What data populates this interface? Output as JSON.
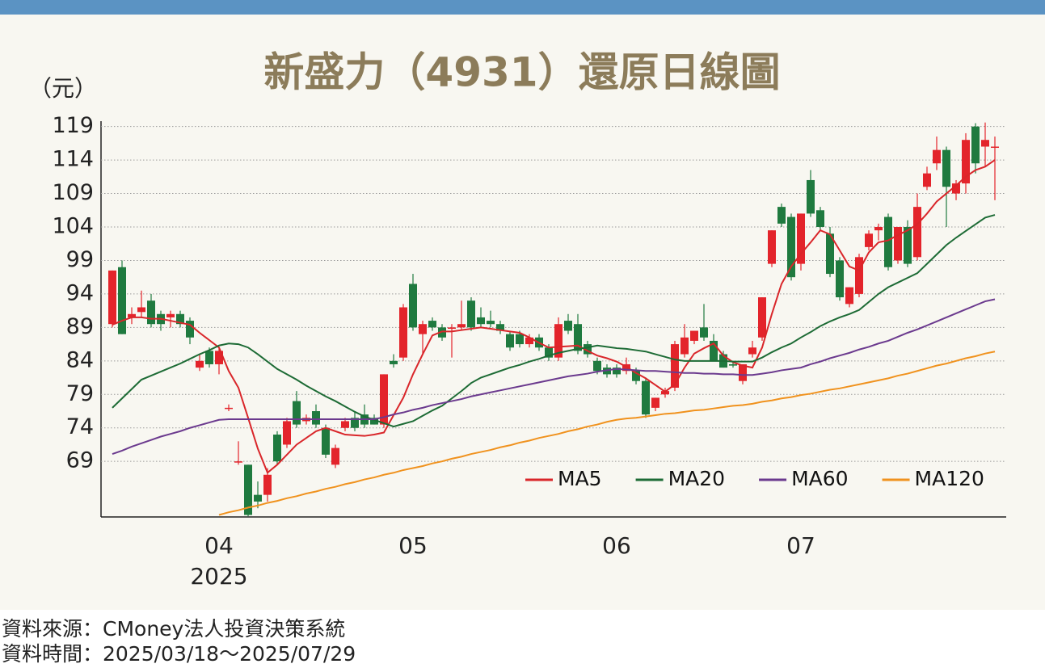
{
  "chart_data": {
    "type": "candlestick",
    "title": "新盛力（4931）還原日線圖",
    "y_unit": "（元）",
    "x_year_label": "2025",
    "categories": [
      null,
      null,
      null,
      null,
      null,
      null,
      null,
      null,
      null,
      null,
      null,
      "04",
      null,
      null,
      null,
      null,
      null,
      null,
      null,
      null,
      null,
      null,
      null,
      null,
      null,
      null,
      null,
      null,
      null,
      null,
      null,
      "05",
      null,
      null,
      null,
      null,
      null,
      null,
      null,
      null,
      null,
      null,
      null,
      null,
      null,
      null,
      null,
      null,
      null,
      null,
      null,
      null,
      "06",
      null,
      null,
      null,
      null,
      null,
      null,
      null,
      null,
      null,
      null,
      null,
      null,
      null,
      null,
      null,
      null,
      null,
      null,
      "07",
      null,
      null,
      null,
      null,
      null,
      null,
      null,
      null,
      null,
      null,
      null,
      null,
      null,
      null,
      null,
      null,
      null,
      null,
      null,
      null
    ],
    "open": [
      89.5,
      98,
      90.5,
      91.3,
      93,
      91,
      90.5,
      91,
      90,
      83,
      85.5,
      83.5,
      77,
      69,
      68.5,
      64,
      64,
      73,
      71.5,
      78,
      75,
      76.5,
      74,
      68.5,
      74,
      75.5,
      76,
      75.5,
      74.5,
      84,
      84.5,
      95.5,
      88,
      90,
      89,
      88.8,
      89,
      93,
      90.5,
      90,
      89.5,
      88,
      88,
      86.5,
      87.5,
      86,
      84.5,
      90,
      89.5,
      86.5,
      84,
      83,
      83,
      82.5,
      82.5,
      81,
      77,
      79,
      80,
      85,
      87,
      89,
      87,
      85,
      83.5,
      81,
      85,
      87.5,
      98.5,
      107,
      105.5,
      98.5,
      111,
      106.5,
      103,
      99,
      92.5,
      94,
      101,
      103.5,
      105.5,
      99,
      104,
      99.5,
      110,
      113.5,
      115.5,
      109,
      110.5,
      119,
      116,
      116
    ],
    "high": [
      97.5,
      99,
      92,
      94.5,
      94,
      91.5,
      91.5,
      91.5,
      90.5,
      85,
      86,
      86,
      77.5,
      72,
      68.5,
      66,
      68,
      73.5,
      75.5,
      79.5,
      76,
      77.5,
      74.5,
      71.5,
      75.5,
      76.5,
      77.5,
      76,
      82,
      85,
      92.5,
      97,
      90,
      90.5,
      89.5,
      89.5,
      93,
      93.5,
      92,
      91.5,
      90,
      88.5,
      88.5,
      88,
      88,
      86.5,
      90.5,
      91,
      91,
      87,
      84.5,
      83.5,
      83.5,
      84.5,
      83,
      81.5,
      78.5,
      80,
      87,
      89.5,
      88.5,
      92.5,
      88,
      85.5,
      84,
      83.5,
      87,
      93.5,
      103.5,
      107.5,
      106,
      106,
      112.5,
      107,
      104,
      99.5,
      95,
      100,
      103.5,
      104.5,
      106,
      104,
      105,
      109,
      113,
      117.5,
      116,
      111,
      118,
      119.5,
      119.6,
      117.5
    ],
    "low": [
      89,
      88,
      89.5,
      90.5,
      89,
      88.5,
      89,
      89,
      86.5,
      82.5,
      83,
      82,
      76.5,
      68.5,
      60.8,
      62,
      63,
      68.5,
      71,
      74,
      74.5,
      74,
      69.5,
      68,
      73.5,
      73.5,
      74,
      74.5,
      74,
      83,
      84,
      88.5,
      85,
      88.5,
      87,
      84.5,
      88.5,
      88.5,
      89,
      89,
      88,
      85.5,
      86,
      86,
      85.5,
      84,
      84,
      88,
      85,
      84.5,
      82,
      81.5,
      81.5,
      82,
      80.5,
      75.5,
      76.5,
      78.5,
      79.5,
      84.5,
      86.5,
      87,
      84,
      83,
      83,
      80.5,
      84.5,
      87,
      98,
      104,
      96,
      97.5,
      105.5,
      103.5,
      96.5,
      93,
      92,
      93.5,
      100.5,
      102,
      97.5,
      98.5,
      98,
      99,
      109.5,
      112.5,
      104,
      108,
      109,
      112,
      113,
      108
    ],
    "close": [
      97.5,
      88,
      91,
      92,
      89.5,
      89.5,
      91,
      89.5,
      87.5,
      84,
      83.5,
      85.5,
      77,
      69,
      61,
      63,
      67,
      69,
      75,
      74.5,
      75.5,
      74.5,
      70,
      71,
      75,
      74,
      74.5,
      74.5,
      82,
      83.5,
      92,
      89,
      89.5,
      89,
      87.5,
      89,
      89.5,
      89,
      89.5,
      89.5,
      88.5,
      86,
      86.5,
      87.5,
      86,
      84.5,
      89.5,
      88.5,
      85.5,
      85,
      82.5,
      82,
      82,
      83.5,
      81,
      76,
      78.5,
      79.5,
      86.5,
      87.5,
      88.5,
      87.5,
      84,
      83,
      83.3,
      83.5,
      86,
      93.5,
      103.5,
      104.5,
      96.5,
      106,
      106,
      104,
      97,
      93.5,
      95,
      99.5,
      103,
      104,
      98,
      104,
      98.5,
      107,
      112,
      115.5,
      110,
      110.5,
      117,
      113.5,
      117,
      116
    ],
    "up_color": "#e3242b",
    "down_color": "#1f7a3f",
    "series": [
      {
        "name": "MA5",
        "color": "#d9262a",
        "values": [
          89.4,
          90.0,
          90.5,
          90.5,
          90.3,
          90.3,
          90.0,
          89.7,
          89.4,
          88.2,
          87.1,
          86.0,
          82.5,
          80.0,
          75.5,
          70.9,
          67.3,
          68.5,
          70.0,
          71.5,
          72.5,
          73.5,
          74.0,
          73.5,
          73.0,
          72.9,
          72.8,
          73.0,
          73.3,
          75.9,
          78.5,
          82.0,
          85.0,
          87.8,
          88.4,
          88.4,
          88.6,
          88.8,
          89.0,
          88.8,
          88.6,
          88.4,
          88.2,
          87.5,
          86.7,
          86.0,
          86.1,
          86.2,
          86.3,
          85.5,
          84.8,
          84.4,
          83.9,
          83.1,
          82.2,
          81.4,
          80.4,
          79.4,
          80.5,
          83.0,
          85.1,
          85.9,
          86.6,
          84.8,
          83.8,
          83.3,
          83.0,
          86.0,
          91.0,
          95.5,
          98.1,
          100.0,
          101.7,
          103.5,
          102.9,
          100.5,
          98.1,
          97.5,
          100.2,
          101.7,
          102.0,
          102.8,
          103.5,
          104.4,
          106.0,
          107.8,
          109.0,
          110.2,
          111.5,
          112.5,
          113.0,
          114.0
        ]
      },
      {
        "name": "MA20",
        "color": "#1d6b35",
        "values": [
          77.0,
          78.4,
          79.8,
          81.2,
          81.8,
          82.4,
          83.0,
          83.6,
          84.3,
          85.0,
          85.6,
          86.3,
          86.6,
          86.5,
          86.0,
          85.0,
          83.9,
          82.8,
          82.0,
          81.2,
          80.3,
          79.5,
          78.7,
          78.0,
          77.2,
          76.4,
          75.7,
          75.2,
          74.7,
          74.2,
          74.6,
          75.0,
          75.8,
          76.6,
          77.3,
          78.4,
          79.5,
          80.7,
          81.5,
          82.0,
          82.5,
          83.0,
          83.4,
          83.9,
          84.3,
          84.8,
          85.2,
          85.5,
          85.8,
          86.0,
          86.3,
          86.1,
          85.9,
          85.8,
          85.6,
          85.4,
          85.0,
          84.6,
          84.2,
          84.0,
          84.0,
          84.0,
          84.0,
          84.0,
          83.9,
          83.9,
          83.9,
          84.5,
          85.3,
          86.0,
          86.6,
          87.5,
          88.3,
          89.2,
          89.9,
          90.5,
          91.0,
          91.6,
          92.8,
          94.0,
          95.0,
          95.7,
          96.4,
          97.1,
          98.5,
          99.9,
          101.3,
          102.4,
          103.4,
          104.4,
          105.4,
          105.8
        ]
      },
      {
        "name": "MA60",
        "color": "#6b3a8e",
        "values": [
          70.1,
          70.6,
          71.2,
          71.7,
          72.2,
          72.7,
          73.1,
          73.5,
          74.0,
          74.4,
          74.8,
          75.2,
          75.3,
          75.3,
          75.3,
          75.3,
          75.3,
          75.3,
          75.3,
          75.3,
          75.3,
          75.3,
          75.3,
          75.3,
          75.3,
          75.3,
          75.3,
          75.3,
          75.6,
          76.0,
          76.3,
          76.7,
          77.0,
          77.4,
          77.7,
          78.0,
          78.3,
          78.7,
          79.0,
          79.3,
          79.6,
          79.9,
          80.2,
          80.5,
          80.8,
          81.1,
          81.4,
          81.7,
          81.9,
          82.1,
          82.4,
          82.6,
          82.8,
          82.7,
          82.6,
          82.5,
          82.5,
          82.4,
          82.3,
          82.2,
          82.2,
          82.1,
          82.1,
          82.0,
          82.0,
          81.9,
          81.9,
          82.1,
          82.3,
          82.6,
          82.8,
          83.0,
          83.5,
          83.9,
          84.4,
          84.8,
          85.2,
          85.7,
          86.1,
          86.6,
          87.0,
          87.6,
          88.2,
          88.7,
          89.3,
          89.9,
          90.5,
          91.1,
          91.7,
          92.3,
          92.9,
          93.2
        ]
      },
      {
        "name": "MA120",
        "color": "#f0921e",
        "values": [
          null,
          null,
          null,
          null,
          null,
          null,
          null,
          null,
          null,
          null,
          null,
          61.0,
          61.4,
          61.7,
          62.1,
          62.4,
          62.8,
          63.1,
          63.5,
          63.8,
          64.2,
          64.5,
          64.9,
          65.2,
          65.6,
          65.9,
          66.3,
          66.6,
          67.0,
          67.3,
          67.7,
          68.0,
          68.3,
          68.7,
          69.0,
          69.4,
          69.7,
          70.1,
          70.4,
          70.7,
          71.1,
          71.4,
          71.8,
          72.1,
          72.5,
          72.8,
          73.1,
          73.5,
          73.8,
          74.2,
          74.5,
          74.9,
          75.2,
          75.4,
          75.5,
          75.7,
          75.9,
          76.1,
          76.2,
          76.4,
          76.6,
          76.7,
          76.9,
          77.1,
          77.3,
          77.4,
          77.6,
          77.9,
          78.1,
          78.4,
          78.6,
          78.9,
          79.1,
          79.4,
          79.7,
          79.9,
          80.2,
          80.5,
          80.8,
          81.1,
          81.4,
          81.8,
          82.1,
          82.5,
          82.9,
          83.3,
          83.6,
          84.0,
          84.4,
          84.7,
          85.1,
          85.4
        ]
      }
    ],
    "ylim": [
      60.7,
      119.8
    ],
    "yticks": [
      69,
      74,
      79,
      84,
      89,
      94,
      99,
      104,
      109,
      114,
      119
    ],
    "grid": true,
    "legend": "lower right"
  },
  "footer": {
    "source": "資料來源：CMoney法人投資決策系統",
    "period": "資料時間：2025/03/18～2025/07/29"
  }
}
